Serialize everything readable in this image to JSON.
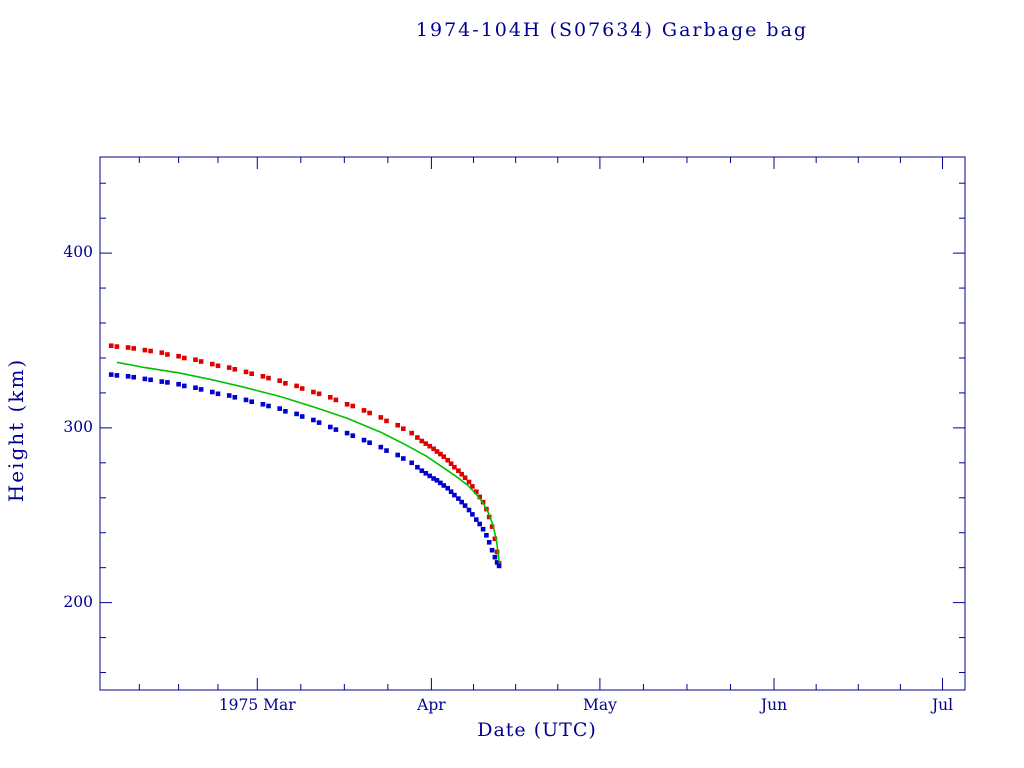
{
  "chart_data": {
    "type": "scatter",
    "title": "1974-104H (S07634) Garbage bag",
    "xlabel": "Date (UTC)",
    "ylabel": "Height (km)",
    "x_encoding": "days since 1975 Feb 1",
    "xlim": [
      0,
      154
    ],
    "ylim": [
      150,
      455
    ],
    "grid": false,
    "legend": "none",
    "xticks": [
      {
        "value": 28,
        "label": "1975 Mar"
      },
      {
        "value": 59,
        "label": "Apr"
      },
      {
        "value": 89,
        "label": "May"
      },
      {
        "value": 120,
        "label": "Jun"
      },
      {
        "value": 150,
        "label": "Jul"
      }
    ],
    "yticks": [
      {
        "value": 200,
        "label": "200"
      },
      {
        "value": 300,
        "label": "300"
      },
      {
        "value": 400,
        "label": "400"
      }
    ],
    "colors": {
      "axis": "#000090",
      "text": "#000090",
      "background": "#ffffff",
      "apogee": "#e00000",
      "perigee": "#0000d0",
      "fit": "#00c000"
    },
    "series": [
      {
        "id": "apogee",
        "name": "apogee height (red squares)",
        "type": "scatter",
        "marker": "square",
        "color": "#e00000",
        "points": [
          [
            2,
            347
          ],
          [
            3,
            346.5
          ],
          [
            5,
            346
          ],
          [
            6,
            345.5
          ],
          [
            8,
            344.5
          ],
          [
            9,
            344
          ],
          [
            11,
            343
          ],
          [
            12,
            342
          ],
          [
            14,
            341
          ],
          [
            15,
            340
          ],
          [
            17,
            339
          ],
          [
            18,
            338
          ],
          [
            20,
            336.5
          ],
          [
            21,
            335.5
          ],
          [
            23,
            334.5
          ],
          [
            24,
            333.5
          ],
          [
            26,
            332
          ],
          [
            27,
            331
          ],
          [
            29,
            329.5
          ],
          [
            30,
            328.5
          ],
          [
            32,
            327
          ],
          [
            33,
            325.5
          ],
          [
            35,
            324
          ],
          [
            36,
            322.5
          ],
          [
            38,
            320.5
          ],
          [
            39,
            319.5
          ],
          [
            41,
            317.5
          ],
          [
            42,
            316
          ],
          [
            44,
            313.5
          ],
          [
            45,
            312.5
          ],
          [
            47,
            310
          ],
          [
            48,
            308.5
          ],
          [
            50,
            306
          ],
          [
            51,
            304
          ],
          [
            53,
            301.5
          ],
          [
            54,
            299.5
          ],
          [
            55.5,
            297
          ],
          [
            56.5,
            294.5
          ],
          [
            57.3,
            292.5
          ],
          [
            58,
            291
          ],
          [
            58.7,
            289.5
          ],
          [
            59.4,
            288
          ],
          [
            60,
            286.5
          ],
          [
            60.6,
            285
          ],
          [
            61.2,
            283.5
          ],
          [
            61.9,
            281.5
          ],
          [
            62.5,
            279.5
          ],
          [
            63.1,
            277.5
          ],
          [
            63.8,
            275.5
          ],
          [
            64.4,
            273.5
          ],
          [
            65,
            271.5
          ],
          [
            65.7,
            269
          ],
          [
            66.3,
            266.5
          ],
          [
            67,
            263.5
          ],
          [
            67.6,
            260.5
          ],
          [
            68.2,
            257.5
          ],
          [
            68.8,
            253.5
          ],
          [
            69.3,
            249
          ],
          [
            69.8,
            243.5
          ],
          [
            70.3,
            236.5
          ],
          [
            70.7,
            229
          ],
          [
            71.05,
            222.5
          ]
        ]
      },
      {
        "id": "perigee",
        "name": "perigee height (blue squares)",
        "type": "scatter",
        "marker": "square",
        "color": "#0000d0",
        "points": [
          [
            2,
            330.5
          ],
          [
            3,
            330
          ],
          [
            5,
            329.5
          ],
          [
            6,
            329
          ],
          [
            8,
            328
          ],
          [
            9,
            327.5
          ],
          [
            11,
            326.5
          ],
          [
            12,
            326
          ],
          [
            14,
            325
          ],
          [
            15,
            324
          ],
          [
            17,
            323
          ],
          [
            18,
            322
          ],
          [
            20,
            320.5
          ],
          [
            21,
            319.5
          ],
          [
            23,
            318.5
          ],
          [
            24,
            317.5
          ],
          [
            26,
            316
          ],
          [
            27,
            315
          ],
          [
            29,
            313.5
          ],
          [
            30,
            312.5
          ],
          [
            32,
            311
          ],
          [
            33,
            309.5
          ],
          [
            35,
            308
          ],
          [
            36,
            306.5
          ],
          [
            38,
            304.5
          ],
          [
            39,
            303
          ],
          [
            41,
            300.5
          ],
          [
            42,
            299
          ],
          [
            44,
            297
          ],
          [
            45,
            295.5
          ],
          [
            47,
            293
          ],
          [
            48,
            291.5
          ],
          [
            50,
            289
          ],
          [
            51,
            287
          ],
          [
            53,
            284.5
          ],
          [
            54,
            282.5
          ],
          [
            55.5,
            280
          ],
          [
            56.5,
            277.5
          ],
          [
            57.3,
            275.5
          ],
          [
            58,
            274
          ],
          [
            58.7,
            272.5
          ],
          [
            59.4,
            271
          ],
          [
            60,
            270
          ],
          [
            60.6,
            268.5
          ],
          [
            61.2,
            267
          ],
          [
            61.9,
            265.5
          ],
          [
            62.5,
            263.5
          ],
          [
            63.1,
            261.5
          ],
          [
            63.8,
            259.5
          ],
          [
            64.4,
            257.5
          ],
          [
            65,
            255.5
          ],
          [
            65.7,
            253
          ],
          [
            66.3,
            250.5
          ],
          [
            67,
            247.5
          ],
          [
            67.6,
            245
          ],
          [
            68.2,
            242
          ],
          [
            68.8,
            238.5
          ],
          [
            69.3,
            234.5
          ],
          [
            69.8,
            230
          ],
          [
            70.3,
            226
          ],
          [
            70.7,
            223
          ],
          [
            71.05,
            221
          ]
        ]
      },
      {
        "id": "fit",
        "name": "mean height fit (green line)",
        "type": "line",
        "color": "#00c000",
        "points": [
          [
            3,
            337.5
          ],
          [
            8,
            334.5
          ],
          [
            14,
            331.5
          ],
          [
            20,
            327.5
          ],
          [
            26,
            323
          ],
          [
            32,
            318
          ],
          [
            38,
            312
          ],
          [
            44,
            305.5
          ],
          [
            50,
            297.5
          ],
          [
            54,
            291
          ],
          [
            58,
            284
          ],
          [
            61,
            277.5
          ],
          [
            63.5,
            272
          ],
          [
            65.5,
            267
          ],
          [
            67,
            262
          ],
          [
            68.2,
            257
          ],
          [
            69.2,
            251
          ],
          [
            70,
            244
          ],
          [
            70.6,
            235
          ],
          [
            71.1,
            222.5
          ]
        ]
      }
    ]
  }
}
